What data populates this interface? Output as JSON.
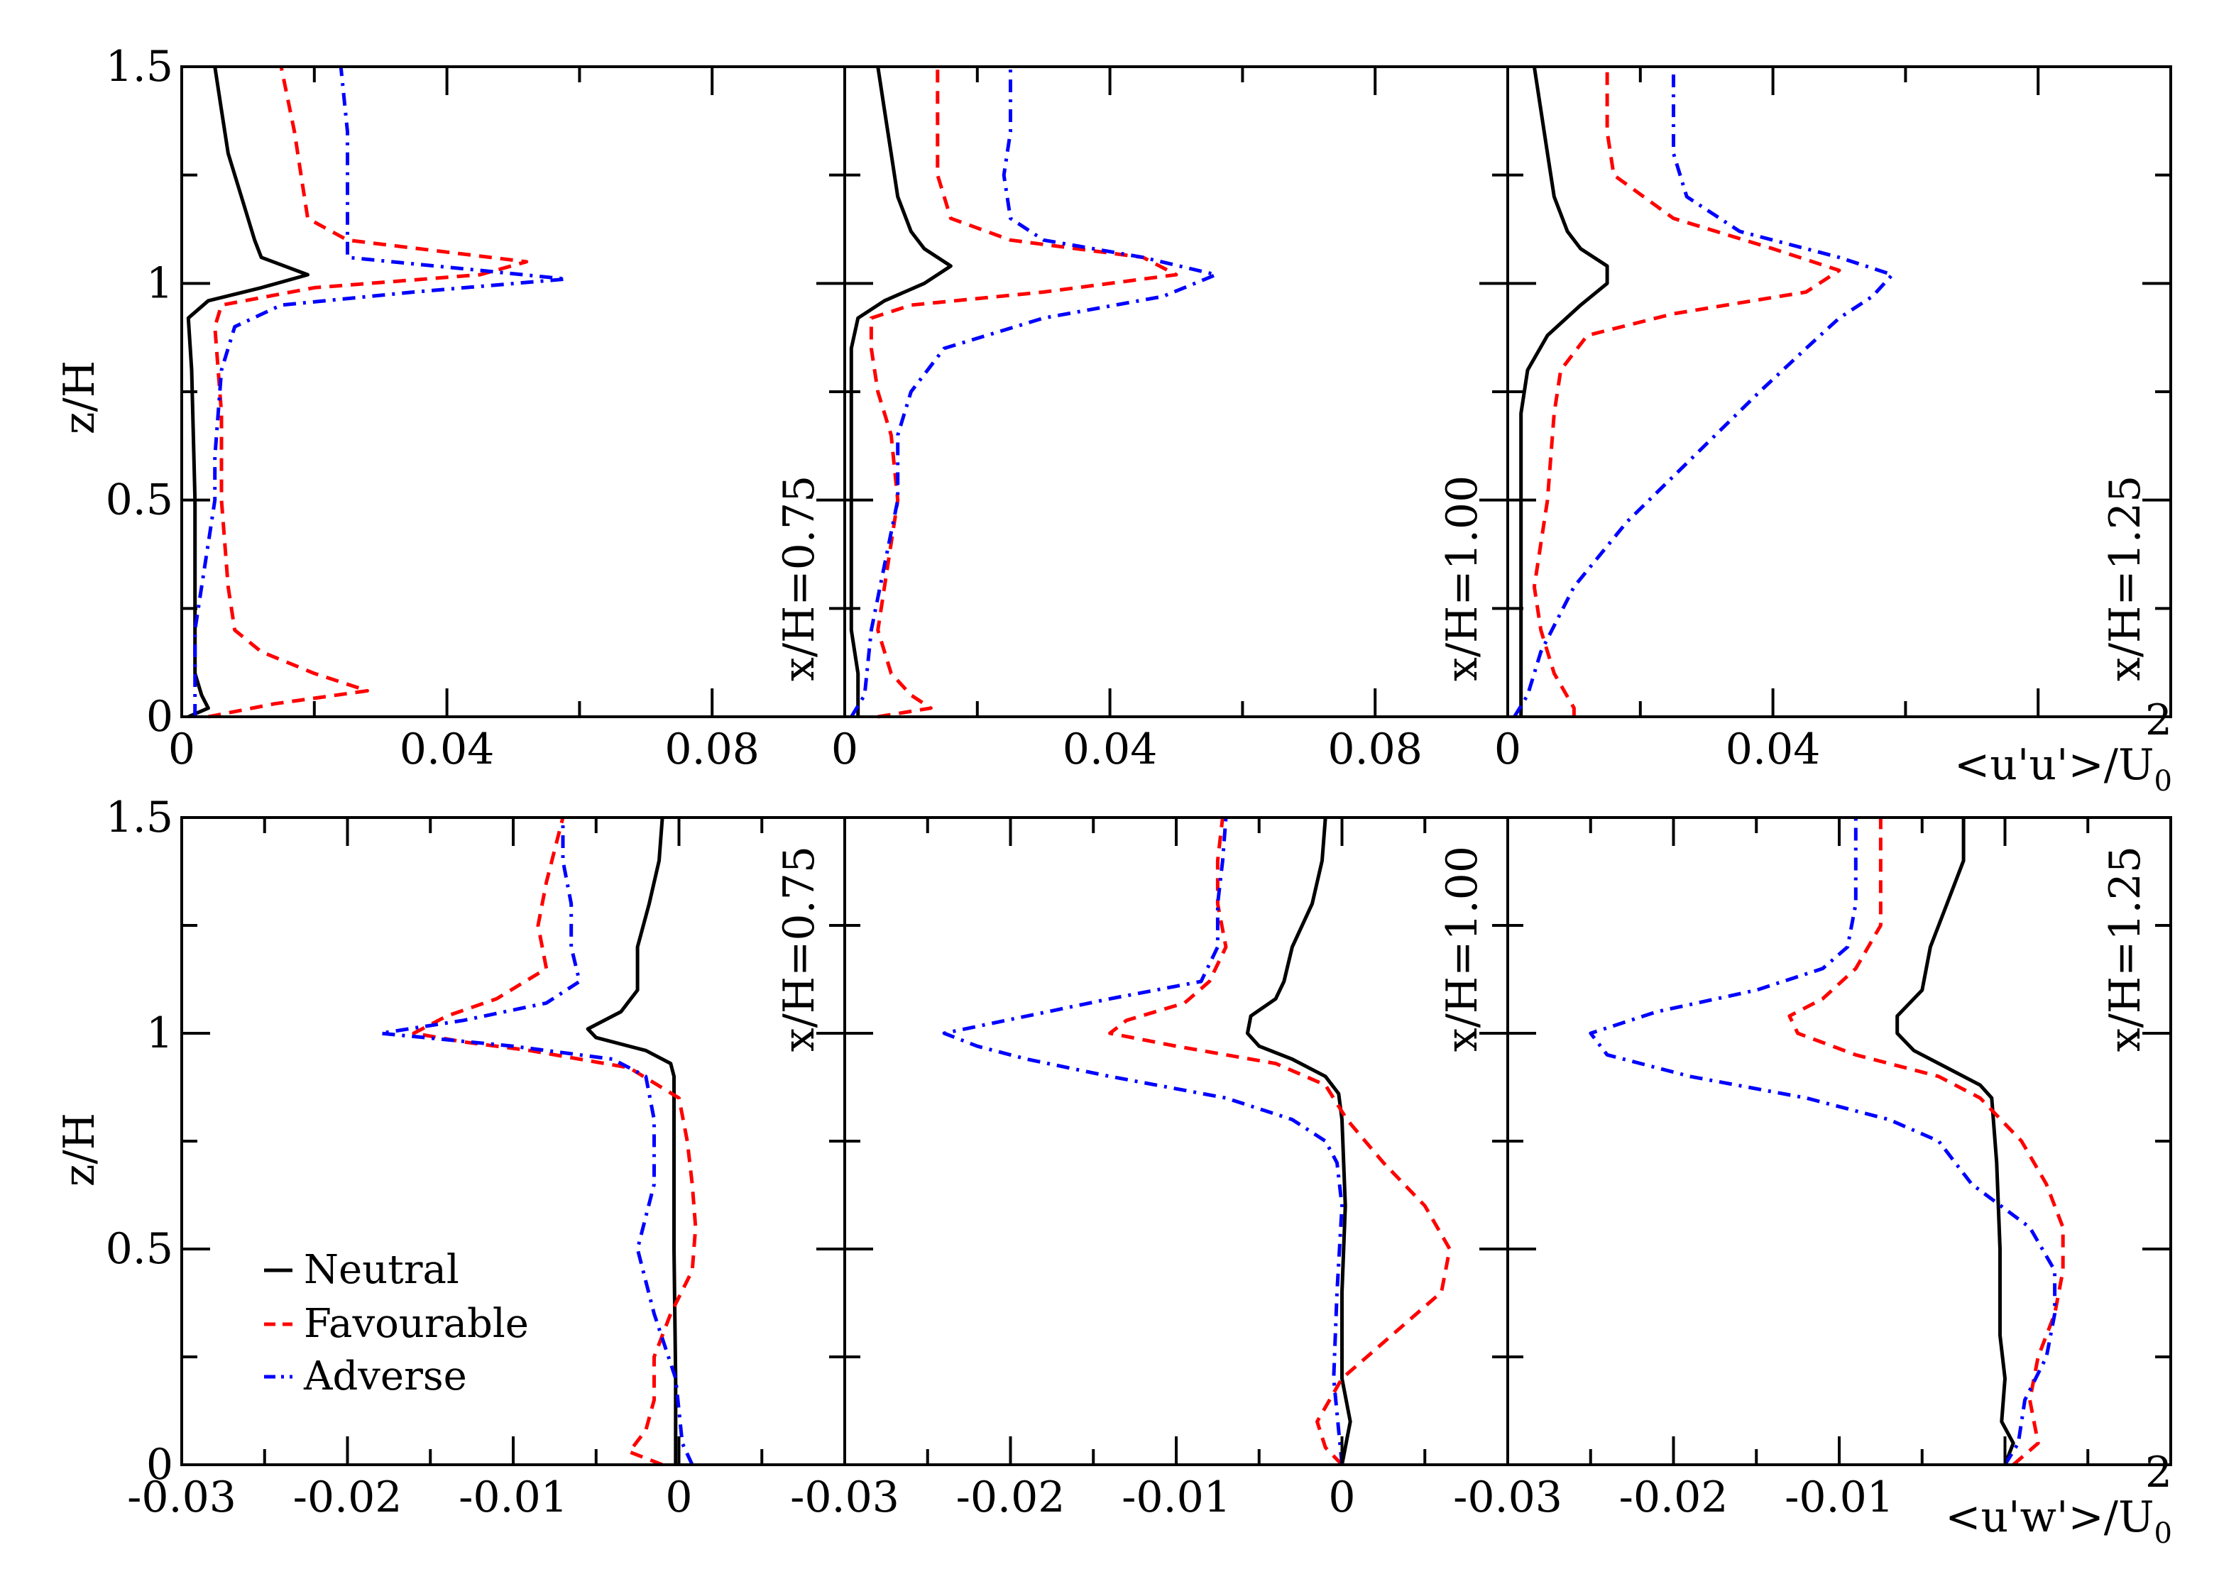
{
  "figure": {
    "xlabel_top": "<u'u'>/U",
    "xlabel_bottom": "<u'w'>/U",
    "xlabel_sub": "0",
    "xlabel_sup": "2",
    "ylabel": "z/H"
  },
  "legend": {
    "placement": "lower-left (bottom-left panel)",
    "items": [
      {
        "label": "Neutral",
        "color": "#000000",
        "dash": "solid"
      },
      {
        "label": "Favourable",
        "color": "#ff0000",
        "dash": "dashed"
      },
      {
        "label": "Adverse",
        "color": "#0000ff",
        "dash": "dashdot"
      }
    ]
  },
  "chart_data": [
    {
      "type": "line",
      "row": "top",
      "label": "x/H=0.75",
      "xlabel": "",
      "ylabel": "z/H",
      "xlim": [
        0,
        0.1
      ],
      "ylim": [
        0,
        1.5
      ],
      "xticks": [
        0,
        0.04,
        0.08
      ],
      "xtick_labels": [
        "0",
        "0.04",
        "0.08"
      ],
      "yticks": [
        0,
        0.5,
        1,
        1.5
      ],
      "ytick_labels": [
        "0",
        "0.5",
        "1",
        "1.5"
      ],
      "series": [
        {
          "name": "Neutral",
          "z": [
            0,
            0.02,
            0.05,
            0.1,
            0.2,
            0.5,
            0.8,
            0.92,
            0.96,
            0.99,
            1.02,
            1.06,
            1.1,
            1.2,
            1.3,
            1.4,
            1.5
          ],
          "values": [
            0.001,
            0.004,
            0.003,
            0.002,
            0.002,
            0.002,
            0.0015,
            0.001,
            0.004,
            0.012,
            0.019,
            0.012,
            0.011,
            0.009,
            0.007,
            0.006,
            0.005
          ]
        },
        {
          "name": "Favourable",
          "z": [
            0,
            0.03,
            0.06,
            0.1,
            0.15,
            0.2,
            0.3,
            0.5,
            0.7,
            0.9,
            0.95,
            0.99,
            1.02,
            1.05,
            1.1,
            1.15,
            1.25,
            1.35,
            1.5
          ],
          "values": [
            0.004,
            0.014,
            0.028,
            0.02,
            0.012,
            0.008,
            0.007,
            0.006,
            0.006,
            0.005,
            0.006,
            0.02,
            0.045,
            0.052,
            0.025,
            0.019,
            0.018,
            0.017,
            0.015
          ]
        },
        {
          "name": "Adverse",
          "z": [
            0,
            0.1,
            0.2,
            0.3,
            0.4,
            0.5,
            0.6,
            0.8,
            0.9,
            0.95,
            0.98,
            1.01,
            1.03,
            1.06,
            1.1,
            1.15,
            1.25,
            1.35,
            1.5
          ],
          "values": [
            0.002,
            0.002,
            0.002,
            0.003,
            0.004,
            0.005,
            0.005,
            0.006,
            0.008,
            0.015,
            0.035,
            0.058,
            0.045,
            0.025,
            0.025,
            0.025,
            0.025,
            0.025,
            0.024
          ]
        }
      ]
    },
    {
      "type": "line",
      "row": "top",
      "label": "x/H=1.00",
      "xlabel": "",
      "ylabel": "",
      "xlim": [
        0,
        0.1
      ],
      "ylim": [
        0,
        1.5
      ],
      "xticks": [
        0,
        0.04,
        0.08
      ],
      "xtick_labels": [
        "0",
        "0.04",
        "0.08"
      ],
      "yticks": [
        0,
        0.5,
        1,
        1.5
      ],
      "ytick_labels": [],
      "series": [
        {
          "name": "Neutral",
          "z": [
            0,
            0.1,
            0.2,
            0.3,
            0.5,
            0.7,
            0.85,
            0.92,
            0.96,
            1.0,
            1.04,
            1.08,
            1.12,
            1.2,
            1.3,
            1.4,
            1.5
          ],
          "values": [
            0.002,
            0.002,
            0.001,
            0.001,
            0.001,
            0.001,
            0.001,
            0.002,
            0.006,
            0.012,
            0.016,
            0.012,
            0.01,
            0.008,
            0.007,
            0.006,
            0.005
          ]
        },
        {
          "name": "Favourable",
          "z": [
            0,
            0.02,
            0.05,
            0.1,
            0.2,
            0.3,
            0.5,
            0.65,
            0.75,
            0.85,
            0.92,
            0.95,
            0.98,
            1.02,
            1.06,
            1.1,
            1.15,
            1.25,
            1.35,
            1.5
          ],
          "values": [
            0.005,
            0.013,
            0.01,
            0.007,
            0.005,
            0.006,
            0.008,
            0.007,
            0.005,
            0.004,
            0.004,
            0.01,
            0.03,
            0.05,
            0.045,
            0.025,
            0.016,
            0.014,
            0.014,
            0.014
          ]
        },
        {
          "name": "Adverse",
          "z": [
            0,
            0.05,
            0.2,
            0.35,
            0.5,
            0.65,
            0.75,
            0.85,
            0.92,
            0.97,
            1.02,
            1.06,
            1.1,
            1.15,
            1.25,
            1.35,
            1.5
          ],
          "values": [
            0.001,
            0.003,
            0.004,
            0.006,
            0.008,
            0.008,
            0.01,
            0.015,
            0.03,
            0.048,
            0.056,
            0.045,
            0.03,
            0.025,
            0.024,
            0.025,
            0.025
          ]
        }
      ]
    },
    {
      "type": "line",
      "row": "top",
      "label": "x/H=1.25",
      "xlabel": "<u'u'>/U0^2",
      "ylabel": "",
      "xlim": [
        0,
        0.1
      ],
      "ylim": [
        0,
        1.5
      ],
      "xticks": [
        0,
        0.04
      ],
      "xtick_labels": [
        "0",
        "0.04"
      ],
      "yticks": [
        0,
        0.5,
        1,
        1.5
      ],
      "ytick_labels": [],
      "series": [
        {
          "name": "Neutral",
          "z": [
            0,
            0.1,
            0.3,
            0.5,
            0.7,
            0.8,
            0.88,
            0.95,
            1.0,
            1.04,
            1.08,
            1.12,
            1.2,
            1.3,
            1.4,
            1.5
          ],
          "values": [
            0.002,
            0.002,
            0.002,
            0.002,
            0.002,
            0.003,
            0.006,
            0.011,
            0.015,
            0.015,
            0.011,
            0.009,
            0.007,
            0.006,
            0.005,
            0.004
          ]
        },
        {
          "name": "Favourable",
          "z": [
            0,
            0.02,
            0.1,
            0.2,
            0.3,
            0.5,
            0.7,
            0.8,
            0.88,
            0.93,
            0.98,
            1.03,
            1.08,
            1.15,
            1.25,
            1.35,
            1.5
          ],
          "values": [
            0.01,
            0.01,
            0.007,
            0.005,
            0.004,
            0.006,
            0.007,
            0.008,
            0.012,
            0.025,
            0.045,
            0.05,
            0.04,
            0.025,
            0.016,
            0.015,
            0.015
          ]
        },
        {
          "name": "Adverse",
          "z": [
            0,
            0.05,
            0.15,
            0.3,
            0.45,
            0.6,
            0.75,
            0.85,
            0.92,
            0.97,
            1.02,
            1.06,
            1.12,
            1.2,
            1.3,
            1.4,
            1.5
          ],
          "values": [
            0.001,
            0.003,
            0.005,
            0.01,
            0.018,
            0.028,
            0.038,
            0.045,
            0.05,
            0.055,
            0.058,
            0.05,
            0.035,
            0.027,
            0.025,
            0.025,
            0.025
          ]
        }
      ]
    },
    {
      "type": "line",
      "row": "bottom",
      "label": "x/H=0.75",
      "xlabel": "",
      "ylabel": "z/H",
      "xlim": [
        -0.03,
        0.01
      ],
      "ylim": [
        0,
        1.5
      ],
      "xticks": [
        -0.03,
        -0.02,
        -0.01,
        0
      ],
      "xtick_labels": [
        "-0.03",
        "-0.02",
        "-0.01",
        "0"
      ],
      "yticks": [
        0,
        0.5,
        1,
        1.5
      ],
      "ytick_labels": [
        "0",
        "0.5",
        "1",
        "1.5"
      ],
      "series": [
        {
          "name": "Neutral",
          "z": [
            0,
            0.2,
            0.5,
            0.8,
            0.9,
            0.93,
            0.96,
            0.99,
            1.01,
            1.05,
            1.1,
            1.2,
            1.3,
            1.4,
            1.5
          ],
          "values": [
            -0.0002,
            -0.0002,
            -0.0003,
            -0.0003,
            -0.0003,
            -0.0005,
            -0.002,
            -0.005,
            -0.0055,
            -0.0035,
            -0.0025,
            -0.0025,
            -0.0018,
            -0.0012,
            -0.001
          ]
        },
        {
          "name": "Favourable",
          "z": [
            0,
            0.03,
            0.08,
            0.15,
            0.25,
            0.35,
            0.45,
            0.55,
            0.65,
            0.75,
            0.85,
            0.92,
            0.96,
            0.98,
            1.0,
            1.04,
            1.08,
            1.15,
            1.25,
            1.35,
            1.5
          ],
          "values": [
            -0.001,
            -0.003,
            -0.002,
            -0.0015,
            -0.0015,
            -0.0005,
            0.0008,
            0.001,
            0.0008,
            0.0005,
            0,
            -0.003,
            -0.009,
            -0.013,
            -0.016,
            -0.014,
            -0.011,
            -0.008,
            -0.0085,
            -0.008,
            -0.007
          ]
        },
        {
          "name": "Adverse",
          "z": [
            0,
            0.05,
            0.2,
            0.35,
            0.5,
            0.65,
            0.8,
            0.9,
            0.94,
            0.97,
            1.0,
            1.03,
            1.07,
            1.12,
            1.2,
            1.3,
            1.4,
            1.5
          ],
          "values": [
            0.0008,
            0.0002,
            -0.0002,
            -0.0015,
            -0.0025,
            -0.0015,
            -0.0015,
            -0.002,
            -0.004,
            -0.01,
            -0.018,
            -0.013,
            -0.008,
            -0.006,
            -0.0065,
            -0.0065,
            -0.007,
            -0.007
          ]
        }
      ]
    },
    {
      "type": "line",
      "row": "bottom",
      "label": "x/H=1.00",
      "xlabel": "",
      "ylabel": "",
      "xlim": [
        -0.03,
        0.01
      ],
      "ylim": [
        0,
        1.5
      ],
      "xticks": [
        -0.03,
        -0.02,
        -0.01,
        0
      ],
      "xtick_labels": [
        "-0.03",
        "-0.02",
        "-0.01",
        "0"
      ],
      "yticks": [
        0,
        0.5,
        1,
        1.5
      ],
      "ytick_labels": [],
      "series": [
        {
          "name": "Neutral",
          "z": [
            0,
            0.1,
            0.2,
            0.4,
            0.6,
            0.8,
            0.86,
            0.9,
            0.94,
            0.97,
            1.0,
            1.04,
            1.08,
            1.12,
            1.2,
            1.3,
            1.4,
            1.5
          ],
          "values": [
            0,
            0.0005,
            0,
            0,
            0.0002,
            0,
            -0.0002,
            -0.001,
            -0.003,
            -0.005,
            -0.0057,
            -0.0055,
            -0.004,
            -0.0035,
            -0.003,
            -0.0018,
            -0.0012,
            -0.001
          ]
        },
        {
          "name": "Favourable",
          "z": [
            0,
            0.04,
            0.1,
            0.2,
            0.3,
            0.4,
            0.5,
            0.6,
            0.7,
            0.8,
            0.88,
            0.93,
            0.97,
            1.0,
            1.03,
            1.07,
            1.12,
            1.2,
            1.3,
            1.4,
            1.5
          ],
          "values": [
            0,
            -0.001,
            -0.0015,
            0,
            0.003,
            0.006,
            0.0065,
            0.005,
            0.0025,
            0.0003,
            -0.001,
            -0.004,
            -0.01,
            -0.014,
            -0.013,
            -0.0095,
            -0.008,
            -0.007,
            -0.0075,
            -0.0075,
            -0.0072
          ]
        },
        {
          "name": "Adverse",
          "z": [
            0,
            0.2,
            0.4,
            0.6,
            0.7,
            0.75,
            0.8,
            0.85,
            0.9,
            0.94,
            0.97,
            1.0,
            1.04,
            1.08,
            1.12,
            1.2,
            1.3,
            1.4,
            1.5
          ],
          "values": [
            0,
            -0.0005,
            -0.0003,
            0,
            -0.0003,
            -0.001,
            -0.003,
            -0.007,
            -0.014,
            -0.019,
            -0.022,
            -0.024,
            -0.019,
            -0.014,
            -0.0085,
            -0.0075,
            -0.0075,
            -0.0072,
            -0.007
          ]
        }
      ]
    },
    {
      "type": "line",
      "row": "bottom",
      "label": "x/H=1.25",
      "xlabel": "<u'w'>/U0^2",
      "ylabel": "",
      "xlim": [
        -0.03,
        0.01
      ],
      "ylim": [
        0,
        1.5
      ],
      "xticks": [
        -0.03,
        -0.02,
        -0.01
      ],
      "xtick_labels": [
        "-0.03",
        "-0.02",
        "-0.01"
      ],
      "yticks": [
        0,
        0.5,
        1,
        1.5
      ],
      "ytick_labels": [],
      "series": [
        {
          "name": "Neutral",
          "z": [
            0,
            0.05,
            0.1,
            0.2,
            0.3,
            0.5,
            0.7,
            0.85,
            0.88,
            0.92,
            0.96,
            1.0,
            1.04,
            1.1,
            1.2,
            1.3,
            1.4,
            1.5
          ],
          "values": [
            0,
            0.0005,
            -0.0002,
            0,
            -0.0003,
            -0.0003,
            -0.0005,
            -0.0008,
            -0.0015,
            -0.0035,
            -0.0055,
            -0.0065,
            -0.0065,
            -0.005,
            -0.0045,
            -0.0035,
            -0.0025,
            -0.0025
          ]
        },
        {
          "name": "Favourable",
          "z": [
            0,
            0.05,
            0.15,
            0.25,
            0.35,
            0.45,
            0.55,
            0.65,
            0.75,
            0.85,
            0.9,
            0.95,
            1.0,
            1.04,
            1.08,
            1.15,
            1.25,
            1.35,
            1.45,
            1.5
          ],
          "values": [
            0.0005,
            0.002,
            0.0015,
            0.002,
            0.003,
            0.0035,
            0.0035,
            0.0025,
            0.001,
            -0.0015,
            -0.004,
            -0.009,
            -0.0125,
            -0.013,
            -0.011,
            -0.009,
            -0.0075,
            -0.0075,
            -0.0075,
            -0.0075
          ]
        },
        {
          "name": "Adverse",
          "z": [
            0,
            0.05,
            0.15,
            0.25,
            0.35,
            0.45,
            0.55,
            0.65,
            0.75,
            0.8,
            0.85,
            0.9,
            0.95,
            1.0,
            1.05,
            1.1,
            1.15,
            1.2,
            1.3,
            1.4,
            1.5
          ],
          "values": [
            0,
            0.0008,
            0.0012,
            0.0025,
            0.003,
            0.003,
            0.0015,
            -0.002,
            -0.004,
            -0.007,
            -0.012,
            -0.019,
            -0.024,
            -0.025,
            -0.021,
            -0.015,
            -0.011,
            -0.0095,
            -0.009,
            -0.009,
            -0.009
          ]
        }
      ]
    }
  ]
}
